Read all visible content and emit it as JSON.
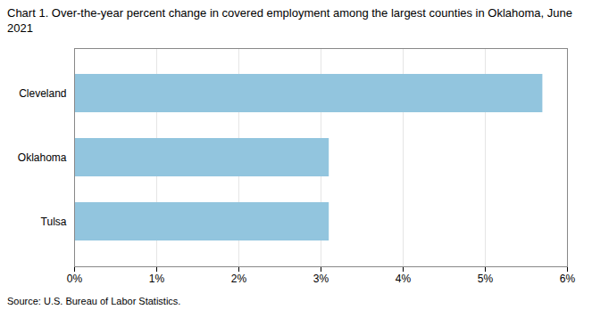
{
  "chart_data": {
    "type": "bar",
    "orientation": "horizontal",
    "title": "Chart 1. Over-the-year percent change in covered employment among the largest counties in Oklahoma, June 2021",
    "categories": [
      "Tulsa",
      "Oklahoma",
      "Cleveland"
    ],
    "values": [
      3.1,
      3.1,
      5.7
    ],
    "color": "#92c5de",
    "xlim": [
      0,
      6
    ],
    "xticks": [
      {
        "value": 0,
        "label": "0%"
      },
      {
        "value": 1,
        "label": "1%"
      },
      {
        "value": 2,
        "label": "2%"
      },
      {
        "value": 3,
        "label": "3%"
      },
      {
        "value": 4,
        "label": "4%"
      },
      {
        "value": 5,
        "label": "5%"
      },
      {
        "value": 6,
        "label": "6%"
      }
    ],
    "grid": true,
    "annotations": [
      "Source: U.S. Bureau of Labor Statistics."
    ]
  }
}
